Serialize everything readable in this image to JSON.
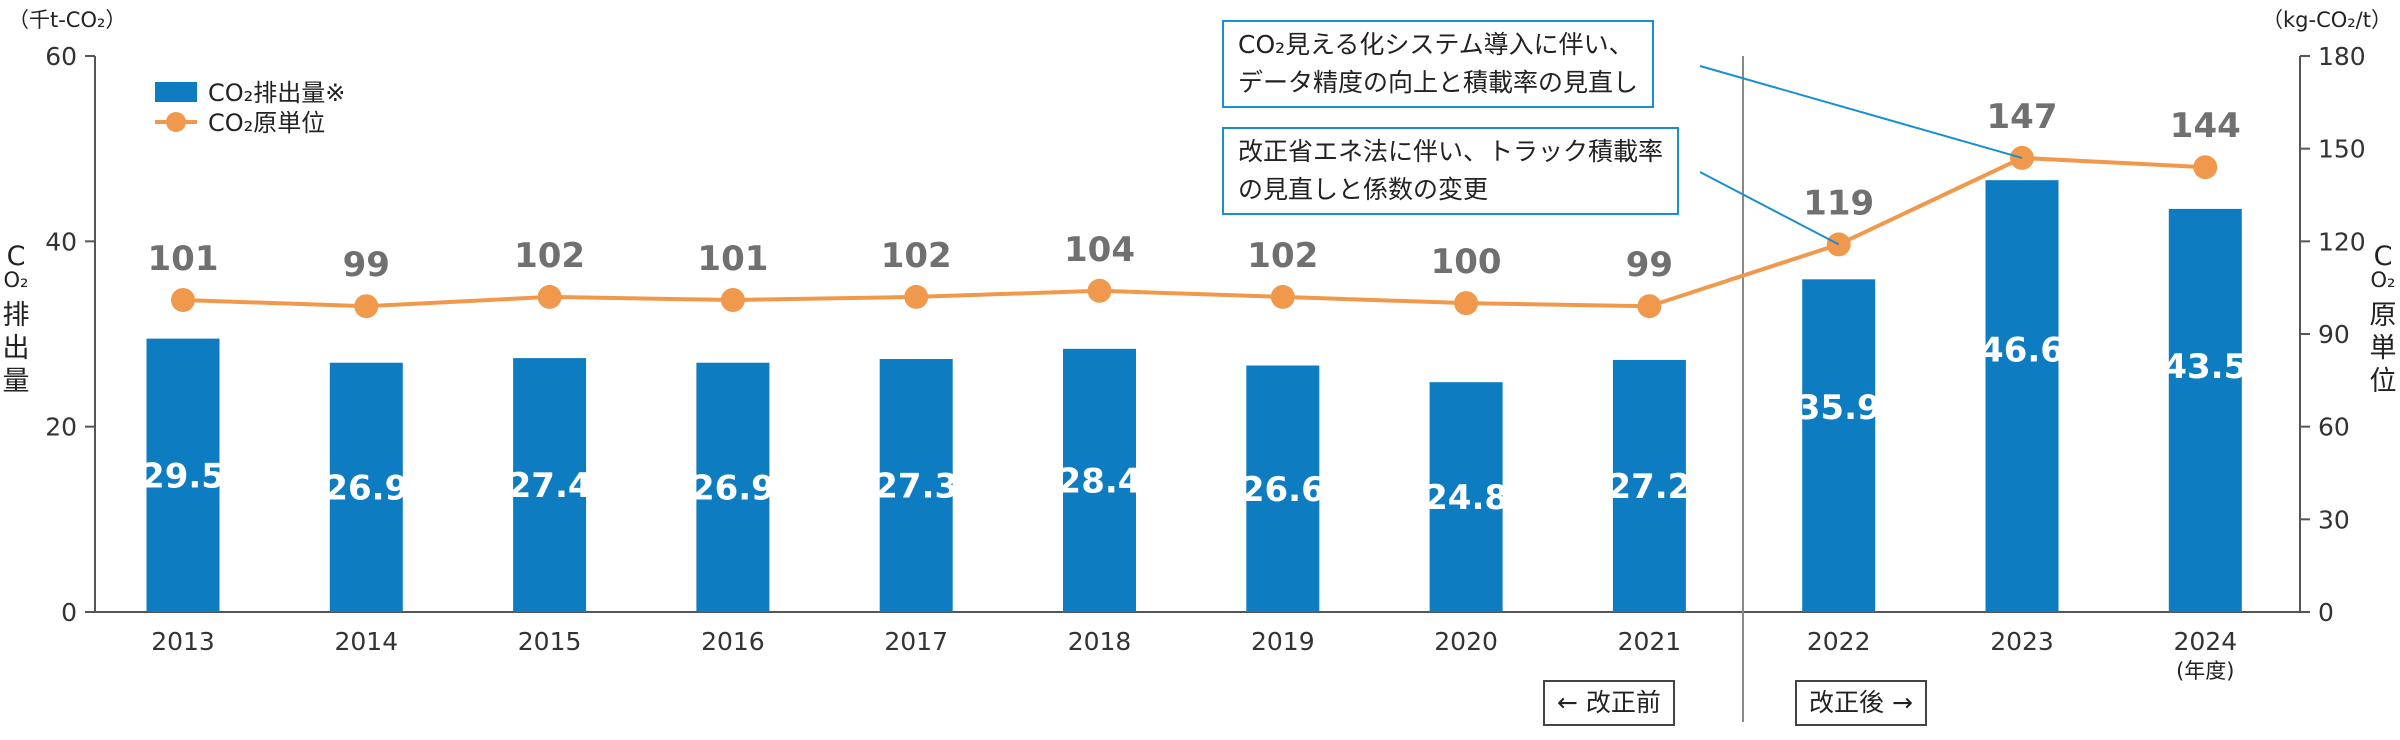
{
  "chart_data": {
    "type": "bar",
    "categories": [
      "2013",
      "2014",
      "2015",
      "2016",
      "2017",
      "2018",
      "2019",
      "2020",
      "2021",
      "2022",
      "2023",
      "2024"
    ],
    "x_note": "(年度)",
    "series": [
      {
        "name": "CO₂排出量※",
        "type": "bar",
        "axis": "left",
        "values": [
          29.5,
          26.9,
          27.4,
          26.9,
          27.3,
          28.4,
          26.6,
          24.8,
          27.2,
          35.9,
          46.6,
          43.5
        ],
        "color": "#0e7cc1"
      },
      {
        "name": "CO₂原単位",
        "type": "line",
        "axis": "right",
        "values": [
          101,
          99,
          102,
          101,
          102,
          104,
          102,
          100,
          99,
          119,
          147,
          144
        ],
        "color": "#f0994c"
      }
    ],
    "y_left": {
      "unit": "（千t-CO₂）",
      "label": [
        "C",
        "O₂",
        "排",
        "出",
        "量"
      ],
      "lim": [
        0,
        60
      ],
      "ticks": [
        0,
        20,
        40,
        60
      ]
    },
    "y_right": {
      "unit": "（kg-CO₂/t）",
      "label": [
        "C",
        "O₂",
        "原",
        "単",
        "位"
      ],
      "lim": [
        0,
        180
      ],
      "ticks": [
        0,
        30,
        60,
        90,
        120,
        150,
        180
      ]
    },
    "legend_position": "top-left",
    "grid": false
  },
  "annotations": [
    {
      "lines": [
        "CO₂見える化システム導入に伴い、",
        "データ精度の向上と積載率の見直し"
      ],
      "points_to": "2023"
    },
    {
      "lines": [
        "改正省エネ法に伴い、トラック積載率",
        "の見直しと係数の変更"
      ],
      "points_to": "2022"
    }
  ],
  "eras": {
    "before": "← 改正前",
    "after": "改正後 →"
  },
  "colors": {
    "annotation_border": "#1a8fcf",
    "divider": "#888888",
    "axis": "#555555"
  }
}
